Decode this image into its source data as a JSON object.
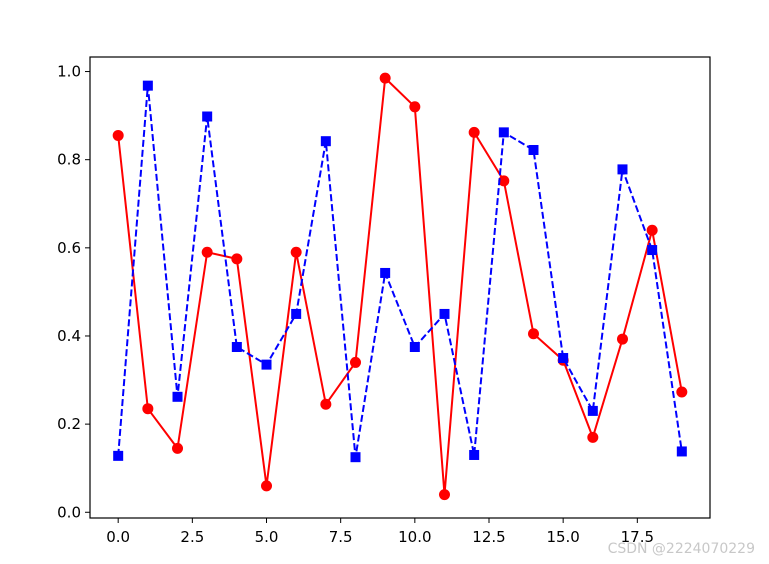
{
  "chart_data": {
    "type": "line",
    "x": [
      0,
      1,
      2,
      3,
      4,
      5,
      6,
      7,
      8,
      9,
      10,
      11,
      12,
      13,
      14,
      15,
      16,
      17,
      18,
      19
    ],
    "series": [
      {
        "color": "#ff0000",
        "line_style": "solid",
        "marker": "circle",
        "values": [
          0.855,
          0.235,
          0.145,
          0.59,
          0.575,
          0.06,
          0.59,
          0.245,
          0.34,
          0.985,
          0.92,
          0.04,
          0.862,
          0.752,
          0.405,
          0.345,
          0.17,
          0.393,
          0.64,
          0.273
        ]
      },
      {
        "color": "#0000ff",
        "line_style": "dashed",
        "marker": "square",
        "values": [
          0.128,
          0.968,
          0.262,
          0.898,
          0.375,
          0.335,
          0.45,
          0.842,
          0.125,
          0.543,
          0.375,
          0.45,
          0.13,
          0.862,
          0.822,
          0.35,
          0.23,
          0.778,
          0.595,
          0.138
        ]
      }
    ],
    "xlim": [
      -0.95,
      19.95
    ],
    "ylim": [
      -0.013,
      1.033
    ],
    "xticks": [
      0.0,
      2.5,
      5.0,
      7.5,
      10.0,
      12.5,
      15.0,
      17.5
    ],
    "xtick_labels": [
      "0.0",
      "2.5",
      "5.0",
      "7.5",
      "10.0",
      "12.5",
      "15.0",
      "17.5"
    ],
    "yticks": [
      0.0,
      0.2,
      0.4,
      0.6,
      0.8,
      1.0
    ],
    "ytick_labels": [
      "0.0",
      "0.2",
      "0.4",
      "0.6",
      "0.8",
      "1.0"
    ],
    "grid": false,
    "title": "",
    "xlabel": "",
    "ylabel": ""
  },
  "watermark": "CSDN @2224070229"
}
